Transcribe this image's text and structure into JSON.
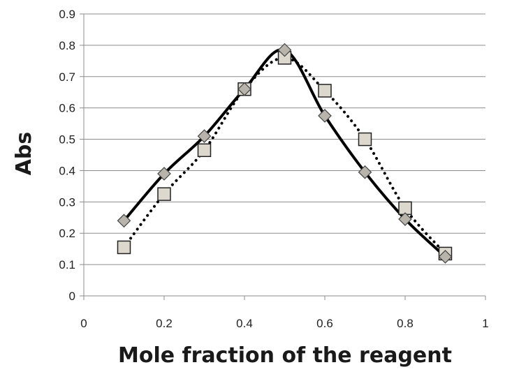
{
  "chart_data": {
    "type": "scatter",
    "xlabel": "Mole fraction of the reagent",
    "ylabel": "Abs",
    "xlim": [
      0,
      1
    ],
    "ylim": [
      0,
      0.9
    ],
    "xticks": [
      "0",
      "0.2",
      "0.4",
      "0.6",
      "0.8",
      "1"
    ],
    "yticks": [
      "0",
      "0.1",
      "0.2",
      "0.3",
      "0.4",
      "0.5",
      "0.6",
      "0.7",
      "0.8",
      "0.9"
    ],
    "grid": "horizontal",
    "series": [
      {
        "marker": "diamond",
        "line": "solid",
        "color": "#000000",
        "marker_fill": "#b8b4ab",
        "x": [
          0.1,
          0.2,
          0.3,
          0.4,
          0.5,
          0.6,
          0.7,
          0.8,
          0.9
        ],
        "y": [
          0.24,
          0.39,
          0.51,
          0.66,
          0.785,
          0.575,
          0.395,
          0.245,
          0.125
        ]
      },
      {
        "marker": "square",
        "line": "dotted",
        "color": "#000000",
        "marker_fill": "#ddd8cd",
        "x": [
          0.1,
          0.2,
          0.3,
          0.4,
          0.5,
          0.6,
          0.7,
          0.8,
          0.9
        ],
        "y": [
          0.155,
          0.325,
          0.465,
          0.66,
          0.76,
          0.655,
          0.5,
          0.28,
          0.135
        ]
      }
    ]
  }
}
